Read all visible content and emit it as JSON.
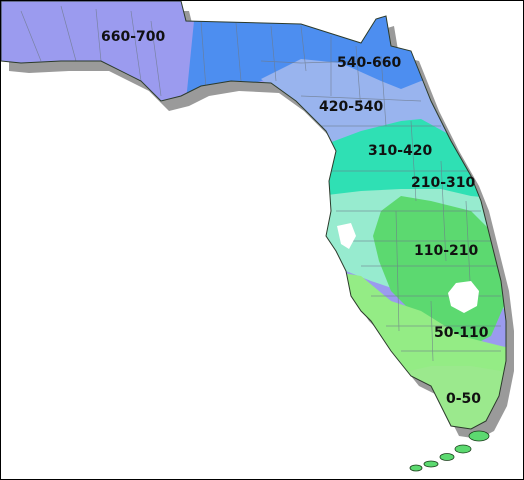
{
  "map": {
    "colors": {
      "zone_660_700": "#9b9bef",
      "zone_540_660": "#4d8ef0",
      "zone_420_540": "#99b4ee",
      "zone_310_420": "#2fe0b4",
      "zone_210_310": "#97ebcf",
      "zone_110_210": "#5cd970",
      "zone_50_110": "#94ec85",
      "zone_0_50": "#9be98d",
      "alabama_strip": "#0a13c8",
      "shadow": "#9a9a9a",
      "lake": "#ffffff"
    },
    "zones": [
      {
        "id": "zone_660_700",
        "label": "660-700"
      },
      {
        "id": "zone_540_660",
        "label": "540-660"
      },
      {
        "id": "zone_420_540",
        "label": "420-540"
      },
      {
        "id": "zone_310_420",
        "label": "310-420"
      },
      {
        "id": "zone_210_310",
        "label": "210-310"
      },
      {
        "id": "zone_110_210",
        "label": "110-210"
      },
      {
        "id": "zone_50_110",
        "label": "50-110"
      },
      {
        "id": "zone_0_50",
        "label": "0-50"
      }
    ]
  }
}
